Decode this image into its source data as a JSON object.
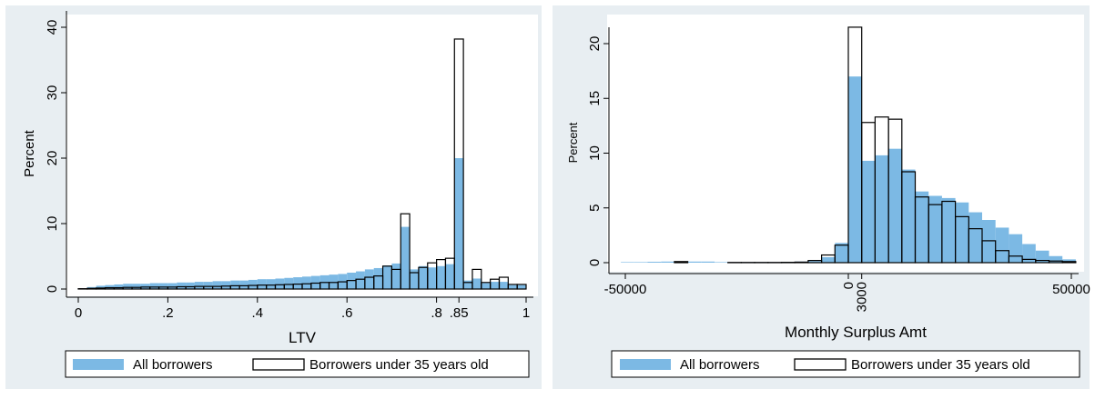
{
  "colors": {
    "outer_bg": "#e8eef2",
    "plot_bg": "#ffffff",
    "all_fill": "#7cb9e4",
    "young_stroke": "#000000"
  },
  "legend": {
    "all": "All borrowers",
    "young": "Borrowers under 35 years old"
  },
  "chart_data": [
    {
      "type": "histogram",
      "title": "",
      "xlabel": "LTV",
      "ylabel": "Percent",
      "xlim": [
        0,
        1
      ],
      "ylim": [
        0,
        40
      ],
      "xticks": [
        0,
        0.2,
        0.4,
        0.6,
        0.8,
        0.85,
        1
      ],
      "xtick_labels": [
        "0",
        ".2",
        ".4",
        ".6",
        ".8",
        ".85",
        "1"
      ],
      "yticks": [
        0,
        10,
        20,
        30,
        40
      ],
      "ytick_labels": [
        "0",
        "10",
        "20",
        "30",
        "40"
      ],
      "bin_width": 0.02,
      "bin_starts": [
        0,
        0.02,
        0.04,
        0.06,
        0.08,
        0.1,
        0.12,
        0.14,
        0.16,
        0.18,
        0.2,
        0.22,
        0.24,
        0.26,
        0.28,
        0.3,
        0.32,
        0.34,
        0.36,
        0.38,
        0.4,
        0.42,
        0.44,
        0.46,
        0.48,
        0.5,
        0.52,
        0.54,
        0.56,
        0.58,
        0.6,
        0.62,
        0.64,
        0.66,
        0.68,
        0.7,
        0.72,
        0.74,
        0.76,
        0.78,
        0.8,
        0.82,
        0.84,
        0.86,
        0.88,
        0.9,
        0.92,
        0.94,
        0.96,
        0.98
      ],
      "series": [
        {
          "name": "All borrowers",
          "values": [
            0.1,
            0.3,
            0.5,
            0.6,
            0.7,
            0.8,
            0.8,
            0.8,
            0.9,
            0.9,
            0.9,
            1.0,
            1.0,
            1.1,
            1.1,
            1.2,
            1.2,
            1.3,
            1.3,
            1.4,
            1.5,
            1.5,
            1.6,
            1.7,
            1.8,
            1.9,
            2.0,
            2.1,
            2.2,
            2.3,
            2.5,
            2.7,
            3.0,
            3.2,
            3.6,
            3.9,
            9.5,
            3.0,
            3.5,
            3.3,
            3.5,
            3.8,
            20.0,
            1.3,
            1.6,
            0.9,
            1.1,
            1.1,
            0.6,
            0.6
          ]
        },
        {
          "name": "Borrowers under 35 years old",
          "values": [
            0.05,
            0.1,
            0.15,
            0.2,
            0.2,
            0.25,
            0.25,
            0.3,
            0.3,
            0.3,
            0.3,
            0.35,
            0.35,
            0.4,
            0.4,
            0.4,
            0.45,
            0.5,
            0.5,
            0.55,
            0.6,
            0.6,
            0.65,
            0.7,
            0.75,
            0.8,
            0.9,
            1.0,
            1.0,
            1.1,
            1.3,
            1.5,
            1.8,
            2.0,
            3.5,
            3.0,
            11.5,
            2.5,
            3.3,
            4.0,
            4.5,
            4.7,
            38.2,
            1.0,
            3.0,
            1.0,
            1.5,
            1.8,
            0.7,
            0.7
          ]
        }
      ],
      "legend_position": "bottom"
    },
    {
      "type": "histogram",
      "title": "",
      "xlabel": "Monthly Surplus Amt",
      "ylabel": "Percent",
      "xlim": [
        -50000,
        50000
      ],
      "ylim": [
        0,
        20
      ],
      "xticks": [
        -50000,
        0,
        3000,
        50000
      ],
      "xtick_labels": [
        "-50000",
        "0",
        "3000",
        "50000"
      ],
      "xtick_rotated": [
        false,
        true,
        true,
        false
      ],
      "yticks": [
        0,
        5,
        10,
        15,
        20
      ],
      "ytick_labels": [
        "0",
        "5",
        "10",
        "15",
        "20"
      ],
      "bin_width": 3000,
      "bin_starts": [
        -51000,
        -48000,
        -45000,
        -42000,
        -39000,
        -36000,
        -33000,
        -30000,
        -27000,
        -24000,
        -21000,
        -18000,
        -15000,
        -12000,
        -9000,
        -6000,
        -3000,
        0,
        3000,
        6000,
        9000,
        12000,
        15000,
        18000,
        21000,
        24000,
        27000,
        30000,
        33000,
        36000,
        39000,
        42000,
        45000,
        48000
      ],
      "series": [
        {
          "name": "All borrowers",
          "values": [
            0.05,
            0.05,
            0.08,
            0.1,
            0.1,
            0.1,
            0.1,
            0.05,
            0.05,
            0.05,
            0.05,
            0.05,
            0.08,
            0.1,
            0.15,
            0.5,
            1.8,
            17.0,
            9.3,
            9.8,
            10.4,
            8.5,
            6.5,
            6.1,
            5.9,
            5.5,
            4.6,
            3.9,
            3.2,
            2.6,
            1.7,
            1.1,
            0.6,
            0.3
          ]
        },
        {
          "name": "Borrowers under 35 years old",
          "values": [
            0.0,
            0.0,
            0.0,
            0.0,
            0.1,
            0.0,
            0.0,
            0.0,
            0.02,
            0.02,
            0.02,
            0.02,
            0.03,
            0.05,
            0.2,
            0.7,
            1.6,
            21.5,
            12.8,
            13.3,
            13.1,
            8.3,
            6.0,
            5.3,
            5.6,
            4.2,
            3.1,
            2.0,
            1.1,
            0.6,
            0.3,
            0.2,
            0.15,
            0.1
          ]
        }
      ],
      "legend_position": "bottom"
    }
  ]
}
